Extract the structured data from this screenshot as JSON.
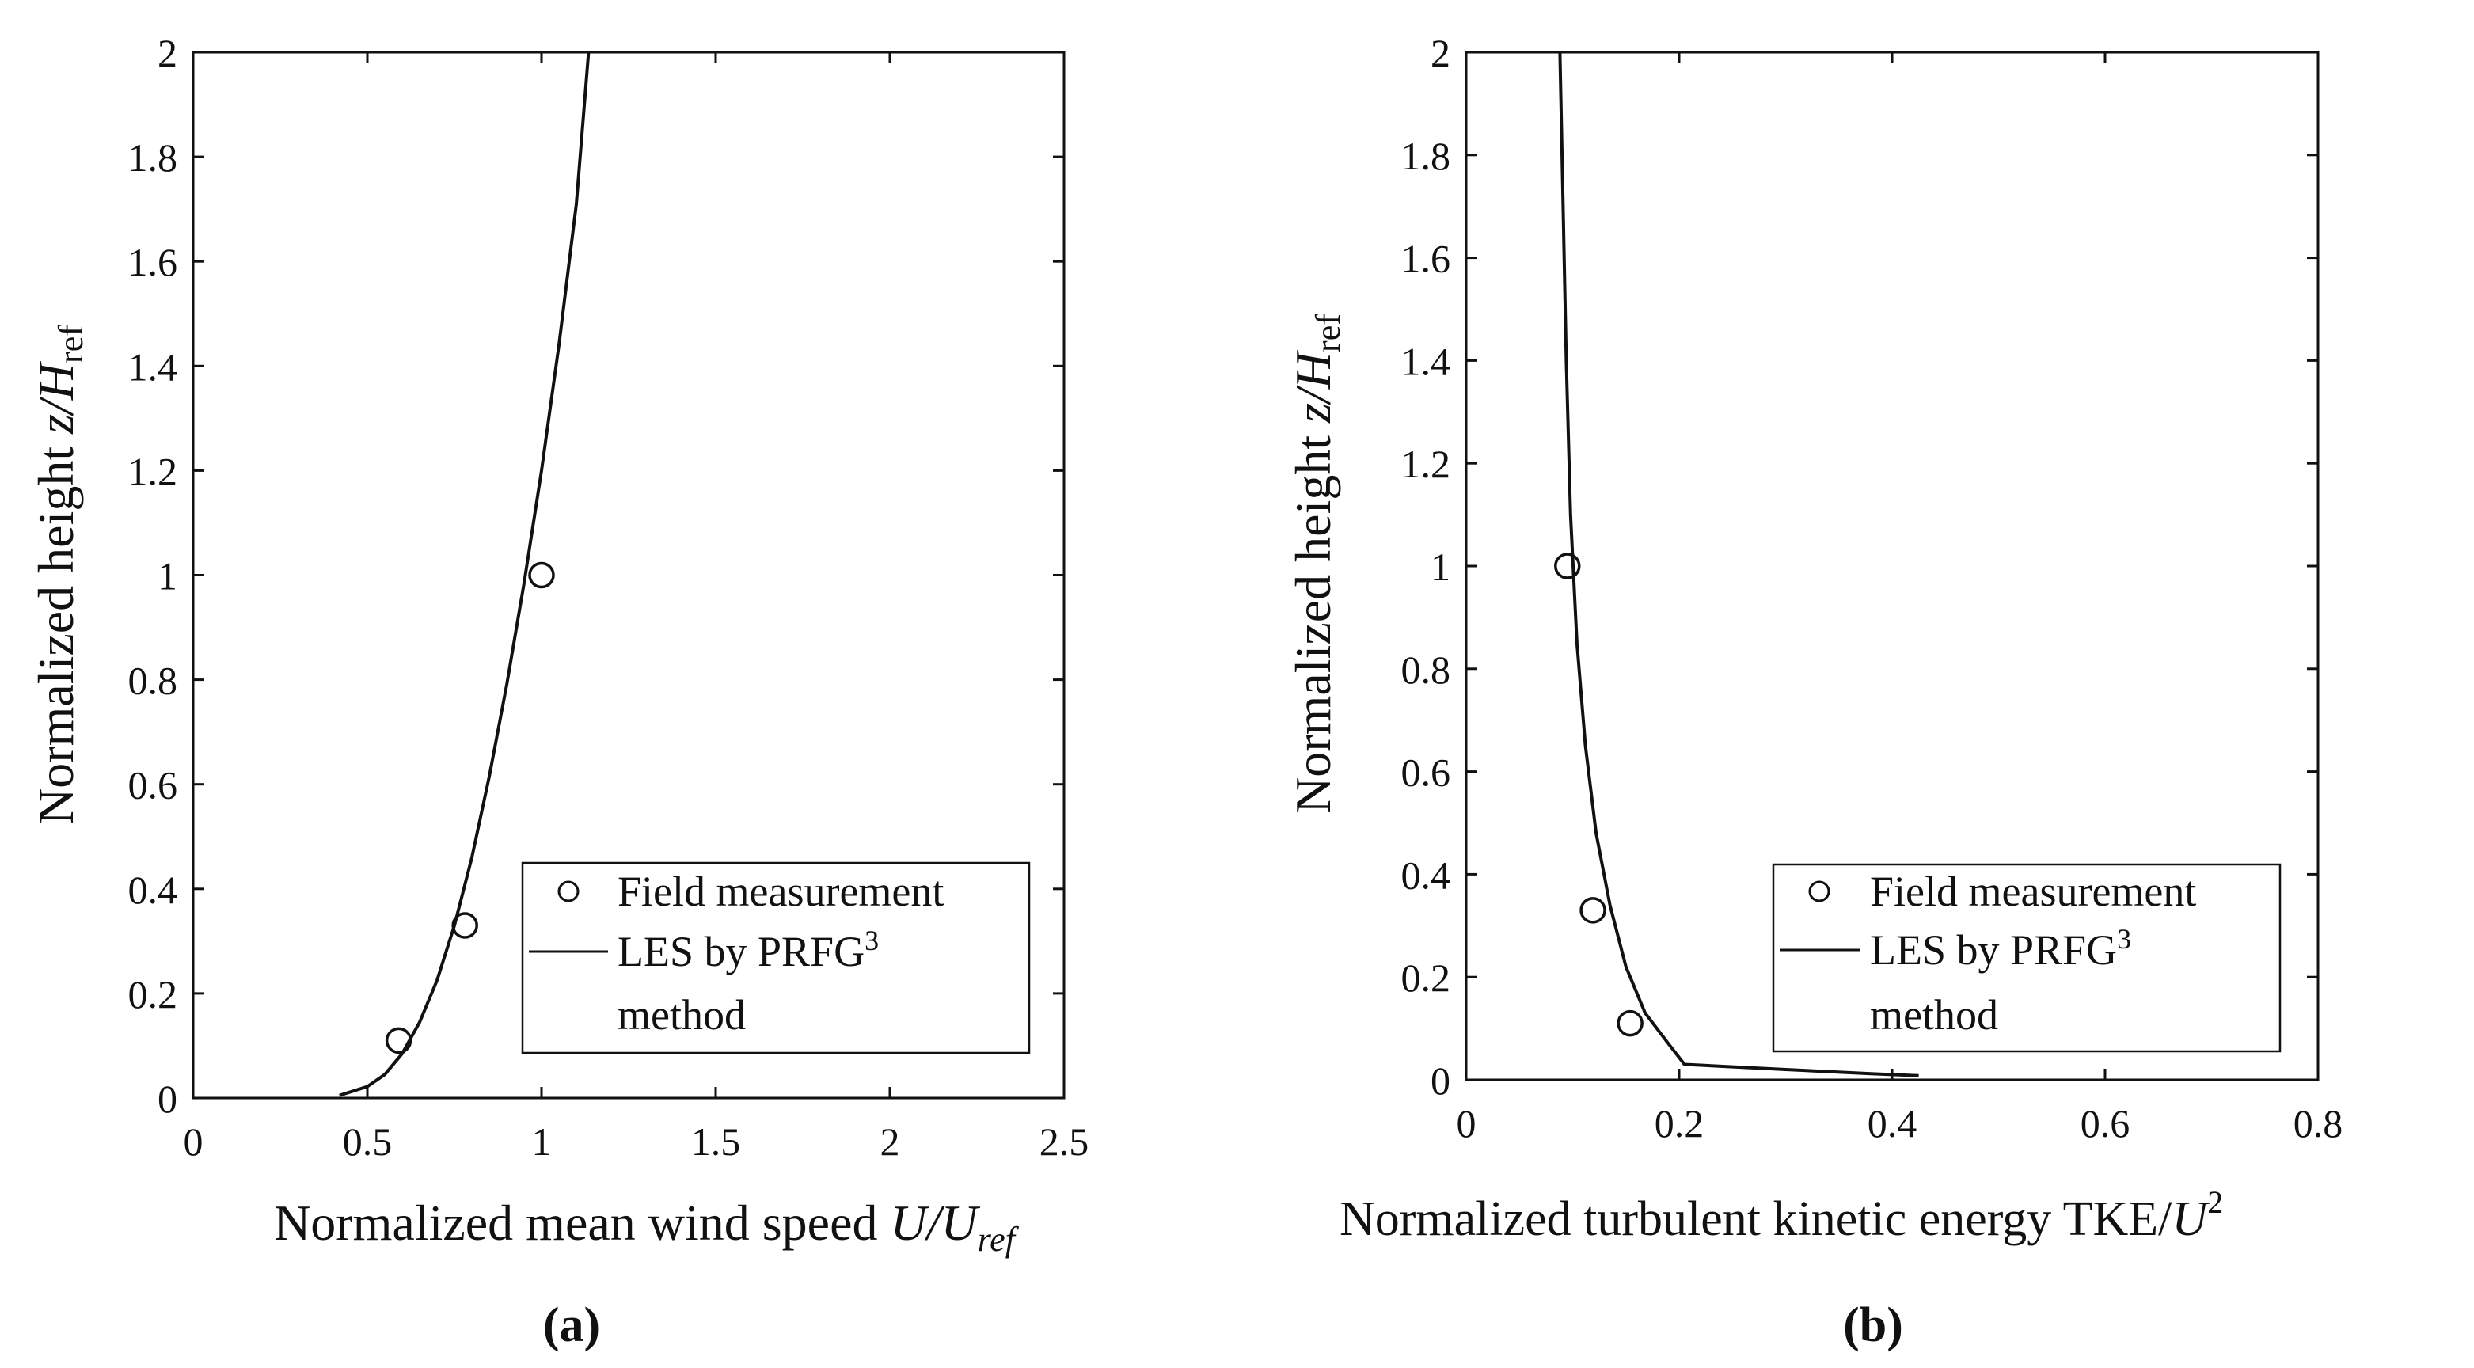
{
  "chart_data": [
    {
      "type": "line",
      "panel_label": "(a)",
      "xlabel": "Normalized mean wind speed U/U_ref",
      "xlabel_parts": {
        "text": "Normalized mean wind speed ",
        "var": "U/U",
        "sub": "ref"
      },
      "ylabel": "Normalized height z/H_ref",
      "ylabel_parts": {
        "text": "Normalized height ",
        "var": "z/H",
        "sub": "ref"
      },
      "xlim": [
        0,
        2.5
      ],
      "ylim": [
        0,
        2
      ],
      "xticks": [
        "0",
        "0.5",
        "1",
        "1.5",
        "2",
        "2.5"
      ],
      "yticks": [
        "0",
        "0.2",
        "0.4",
        "0.6",
        "0.8",
        "1",
        "1.2",
        "1.4",
        "1.6",
        "1.8",
        "2"
      ],
      "grid": false,
      "legend_position": "bottom-right",
      "series": [
        {
          "name": "Field measurement",
          "kind": "scatter",
          "marker": "circle",
          "x": [
            0.59,
            0.78,
            1.0
          ],
          "y": [
            0.11,
            0.33,
            1.0
          ]
        },
        {
          "name": "LES by PRFG3 method",
          "kind": "line",
          "x": [
            0.42,
            0.5,
            0.55,
            0.6,
            0.65,
            0.7,
            0.75,
            0.8,
            0.85,
            0.9,
            0.95,
            1.0,
            1.05,
            1.1,
            1.135
          ],
          "y": [
            0.005,
            0.022,
            0.045,
            0.085,
            0.145,
            0.225,
            0.33,
            0.46,
            0.615,
            0.79,
            0.985,
            1.2,
            1.44,
            1.71,
            2.0
          ]
        }
      ],
      "legend": {
        "entries": [
          {
            "label": "Field measurement",
            "marker": "circle"
          },
          {
            "label_main": "LES by PRFG",
            "label_sup": "3",
            "label_line2": "method",
            "marker": "line"
          }
        ]
      }
    },
    {
      "type": "line",
      "panel_label": "(b)",
      "xlabel": "Normalized turbulent kinetic energy TKE/U^2",
      "xlabel_parts": {
        "text": "Normalized turbulent kinetic energy ",
        "var_roman": "TKE/",
        "var": "U",
        "sup": "2"
      },
      "ylabel": "Normalized height z/H_ref",
      "ylabel_parts": {
        "text": "Normalized height ",
        "var": "z/H",
        "sub": "ref"
      },
      "xlim": [
        0,
        0.8
      ],
      "ylim": [
        0,
        2
      ],
      "xticks": [
        "0",
        "0.2",
        "0.4",
        "0.6",
        "0.8"
      ],
      "yticks": [
        "0",
        "0.2",
        "0.4",
        "0.6",
        "0.8",
        "1",
        "1.2",
        "1.4",
        "1.6",
        "1.8",
        "2"
      ],
      "grid": false,
      "legend_position": "bottom-right",
      "series": [
        {
          "name": "Field measurement",
          "kind": "scatter",
          "marker": "circle",
          "x": [
            0.095,
            0.119,
            0.154
          ],
          "y": [
            1.0,
            0.33,
            0.11
          ]
        },
        {
          "name": "LES by PRFG3 method",
          "kind": "line",
          "x": [
            0.088,
            0.091,
            0.094,
            0.098,
            0.104,
            0.112,
            0.122,
            0.135,
            0.15,
            0.168,
            0.19,
            0.205,
            0.3,
            0.38,
            0.425
          ],
          "y": [
            2.0,
            1.7,
            1.4,
            1.1,
            0.85,
            0.65,
            0.48,
            0.34,
            0.22,
            0.13,
            0.07,
            0.03,
            0.02,
            0.012,
            0.008
          ]
        }
      ],
      "legend": {
        "entries": [
          {
            "label": "Field measurement",
            "marker": "circle"
          },
          {
            "label_main": "LES by PRFG",
            "label_sup": "3",
            "label_line2": "method",
            "marker": "line"
          }
        ]
      }
    }
  ]
}
